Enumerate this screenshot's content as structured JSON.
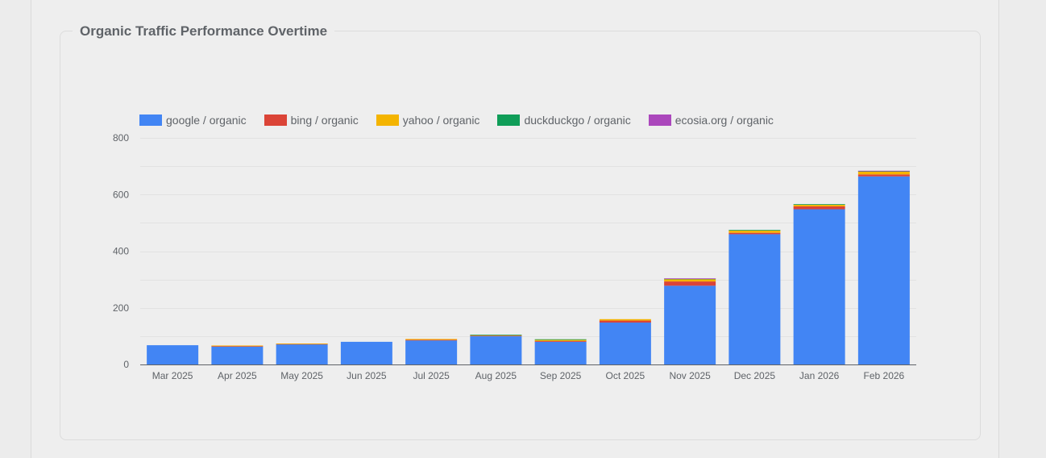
{
  "card": {
    "title": "Organic Traffic Performance Overtime"
  },
  "chart_data": {
    "type": "bar",
    "stacked": true,
    "title": "Organic Traffic Performance Overtime",
    "xlabel": "",
    "ylabel": "",
    "ylim": [
      0,
      800
    ],
    "yticks": [
      "0",
      "200",
      "400",
      "600",
      "800"
    ],
    "grid": true,
    "legend_position": "top-left",
    "categories": [
      "Mar 2025",
      "Apr 2025",
      "May 2025",
      "Jun 2025",
      "Jul 2025",
      "Aug 2025",
      "Sep 2025",
      "Oct 2025",
      "Nov 2025",
      "Dec 2025",
      "Jan 2026",
      "Feb 2026"
    ],
    "series": [
      {
        "name": "google / organic",
        "color": "#4285f4",
        "values": [
          68,
          63,
          71,
          80,
          85,
          100,
          80,
          148,
          278,
          460,
          548,
          664
        ]
      },
      {
        "name": "bing / organic",
        "color": "#db4437",
        "values": [
          0,
          2,
          2,
          0,
          2,
          2,
          3,
          7,
          15,
          5,
          10,
          7
        ]
      },
      {
        "name": "yahoo / organic",
        "color": "#f4b400",
        "values": [
          0,
          2,
          1,
          0,
          3,
          2,
          4,
          5,
          9,
          9,
          7,
          11
        ]
      },
      {
        "name": "duckduckgo / organic",
        "color": "#0f9d58",
        "values": [
          0,
          0,
          0,
          0,
          0,
          1,
          2,
          0,
          1,
          1,
          1,
          1
        ]
      },
      {
        "name": "ecosia.org / organic",
        "color": "#ab47bc",
        "values": [
          0,
          0,
          0,
          0,
          0,
          0,
          0,
          0,
          1,
          0,
          0,
          1
        ]
      }
    ]
  }
}
